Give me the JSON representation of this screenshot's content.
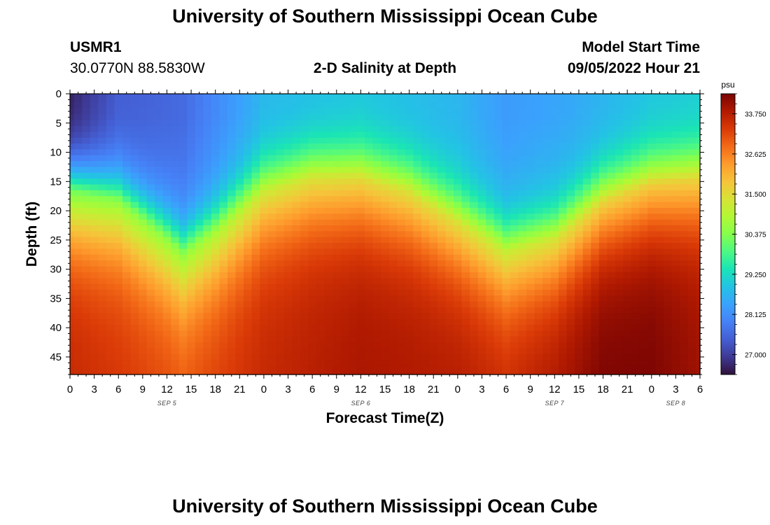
{
  "page": {
    "title_top": "University of Southern Mississippi Ocean Cube",
    "title_bottom": "University of Southern Mississippi Ocean Cube",
    "station_id": "USMR1",
    "station_coords": "30.0770N  88.5830W",
    "chart_subtitle": "2-D Salinity at Depth",
    "model_start_label": "Model Start Time",
    "model_start_value": "09/05/2022 Hour 21"
  },
  "colors": {
    "colormap": [
      "#30123b",
      "#3e3994",
      "#455ed3",
      "#4681f7",
      "#3aa2fc",
      "#23c3e4",
      "#1ae4b6",
      "#4cf884",
      "#85ff4c",
      "#b2f834",
      "#d8e236",
      "#f6c33a",
      "#fe9b2d",
      "#f36a17",
      "#da3a07",
      "#b11a01",
      "#7a0403"
    ]
  },
  "chart_data": {
    "type": "heatmap",
    "title": "2-D Salinity at Depth",
    "xlabel": "Forecast Time(Z)",
    "ylabel": "Depth (ft)",
    "x_tick_labels": [
      "0",
      "3",
      "6",
      "9",
      "12",
      "15",
      "18",
      "21",
      "0",
      "3",
      "6",
      "9",
      "12",
      "15",
      "18",
      "21",
      "0",
      "3",
      "6",
      "9",
      "12",
      "15",
      "18",
      "21",
      "0",
      "3",
      "6"
    ],
    "x_range_hours": [
      0,
      78
    ],
    "x_start": "2022-09-05 00Z",
    "date_labels": [
      {
        "label": "SEP 5",
        "hour": 12
      },
      {
        "label": "SEP 6",
        "hour": 36
      },
      {
        "label": "SEP 7",
        "hour": 60
      },
      {
        "label": "SEP 8",
        "hour": 75
      }
    ],
    "y_tick_values": [
      0,
      5,
      10,
      15,
      20,
      25,
      30,
      35,
      40,
      45
    ],
    "y_range_ft": [
      0,
      48
    ],
    "y_inverted": true,
    "colorbar": {
      "unit": "psu",
      "range": [
        26.44,
        34.31
      ],
      "tick_values": [
        27.0,
        28.125,
        29.25,
        30.375,
        31.5,
        32.625,
        33.75
      ],
      "tick_labels": [
        "27.000",
        "28.125",
        "29.250",
        "30.375",
        "31.500",
        "32.625",
        "33.750"
      ]
    },
    "grid_resolution": {
      "time_steps": 79,
      "depth_steps": 49
    },
    "surface_salinity_profile": {
      "hours": [
        0,
        6,
        14,
        24,
        36,
        48,
        54,
        62,
        72,
        78
      ],
      "psu": [
        26.6,
        27.4,
        27.6,
        28.7,
        28.9,
        28.7,
        28.3,
        28.5,
        28.9,
        29.0
      ]
    },
    "halocline_depth_ft_profile": {
      "hours": [
        0,
        6,
        12,
        14,
        18,
        24,
        30,
        36,
        42,
        48,
        54,
        60,
        66,
        72,
        78
      ],
      "depth_ft": [
        16.5,
        18.5,
        25.0,
        27.5,
        24.0,
        17.0,
        14.5,
        14.5,
        17.0,
        22.0,
        27.0,
        25.0,
        18.5,
        15.5,
        14.5
      ]
    },
    "bottom_salinity_profile": {
      "hours": [
        0,
        12,
        14,
        24,
        36,
        48,
        54,
        60,
        66,
        72,
        78
      ],
      "psu": [
        33.6,
        33.2,
        33.1,
        33.6,
        33.9,
        33.8,
        33.6,
        33.9,
        34.3,
        34.3,
        34.0
      ]
    }
  }
}
